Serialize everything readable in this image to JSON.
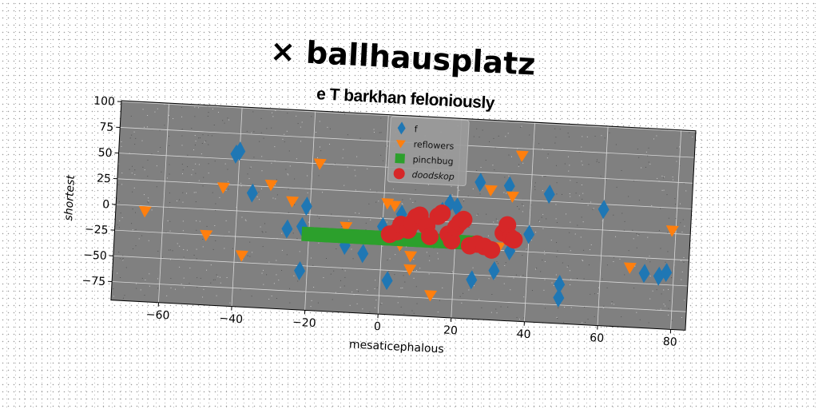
{
  "chart_data": {
    "type": "scatter",
    "title": "× ballhausplatz",
    "subtitle": "e T barkhan feloniously",
    "xlabel": "mesaticephalous",
    "ylabel": "shortest",
    "xlim": [
      -73,
      84
    ],
    "ylim": [
      -93,
      101
    ],
    "xticks": [
      -60,
      -40,
      -20,
      0,
      20,
      40,
      60,
      80
    ],
    "yticks": [
      -75,
      -50,
      -25,
      0,
      25,
      50,
      75,
      100
    ],
    "grid": true,
    "legend_position": "top-center",
    "series": [
      {
        "name": "f",
        "marker": "thin_diamond",
        "color": "#1f77b4",
        "points": [
          [
            -41,
            55
          ],
          [
            -40,
            58
          ],
          [
            -36,
            18
          ],
          [
            -26,
            -15
          ],
          [
            -22,
            -12
          ],
          [
            -21,
            8
          ],
          [
            -22,
            -55
          ],
          [
            -10,
            -28
          ],
          [
            -5,
            -35
          ],
          [
            0,
            -8
          ],
          [
            2,
            -60
          ],
          [
            5,
            5
          ],
          [
            16,
            10
          ],
          [
            18,
            18
          ],
          [
            20,
            15
          ],
          [
            25,
            -55
          ],
          [
            26,
            40
          ],
          [
            31,
            -45
          ],
          [
            34,
            38
          ],
          [
            35,
            -25
          ],
          [
            40,
            -8
          ],
          [
            45,
            32
          ],
          [
            49,
            -55
          ],
          [
            49,
            -68
          ],
          [
            60,
            20
          ],
          [
            72,
            -40
          ],
          [
            76,
            -42
          ],
          [
            78,
            -38
          ]
        ]
      },
      {
        "name": "reflowers",
        "marker": "triangle_down",
        "color": "#ff7f0e",
        "points": [
          [
            -65,
            -5
          ],
          [
            -48,
            -25
          ],
          [
            -44,
            22
          ],
          [
            -38,
            -43
          ],
          [
            -31,
            27
          ],
          [
            -25,
            12
          ],
          [
            -18,
            50
          ],
          [
            -10,
            -10
          ],
          [
            1,
            15
          ],
          [
            3,
            13
          ],
          [
            5,
            -25
          ],
          [
            8,
            -35
          ],
          [
            8,
            -48
          ],
          [
            14,
            -72
          ],
          [
            15,
            -105
          ],
          [
            29,
            33
          ],
          [
            32,
            -22
          ],
          [
            35,
            28
          ],
          [
            37,
            68
          ],
          [
            68,
            -35
          ],
          [
            79,
            3
          ]
        ]
      },
      {
        "name": "pinchbug",
        "marker": "square",
        "color": "#2ca02c",
        "points": [
          [
            -20,
            -19
          ],
          [
            -18,
            -19
          ],
          [
            -16,
            -19
          ],
          [
            -14,
            -19
          ],
          [
            -12,
            -19
          ],
          [
            -10,
            -19
          ],
          [
            -8,
            -19
          ],
          [
            -6,
            -19
          ],
          [
            -4,
            -19
          ],
          [
            -2,
            -19
          ],
          [
            0,
            -19
          ],
          [
            2,
            -19
          ],
          [
            4,
            -19
          ],
          [
            6,
            -19
          ],
          [
            8,
            -19
          ],
          [
            10,
            -19
          ],
          [
            12,
            -19
          ],
          [
            14,
            -19
          ],
          [
            16,
            -19
          ],
          [
            18,
            -19
          ],
          [
            20,
            -19
          ],
          [
            22,
            -19
          ],
          [
            24,
            -19
          ]
        ]
      },
      {
        "name": "doodskop",
        "marker": "circle",
        "color": "#d62728",
        "points": [
          [
            2,
            -15
          ],
          [
            4,
            -12
          ],
          [
            5,
            -5
          ],
          [
            7,
            -10
          ],
          [
            8,
            -3
          ],
          [
            9,
            3
          ],
          [
            10,
            5
          ],
          [
            12,
            -5
          ],
          [
            13,
            -15
          ],
          [
            15,
            5
          ],
          [
            16,
            8
          ],
          [
            18,
            -12
          ],
          [
            19,
            -18
          ],
          [
            20,
            -5
          ],
          [
            21,
            0
          ],
          [
            22,
            3
          ],
          [
            24,
            -22
          ],
          [
            26,
            -20
          ],
          [
            28,
            -22
          ],
          [
            30,
            -25
          ],
          [
            33,
            -8
          ],
          [
            34,
            0
          ],
          [
            35,
            -12
          ],
          [
            36,
            -14
          ]
        ]
      }
    ]
  }
}
